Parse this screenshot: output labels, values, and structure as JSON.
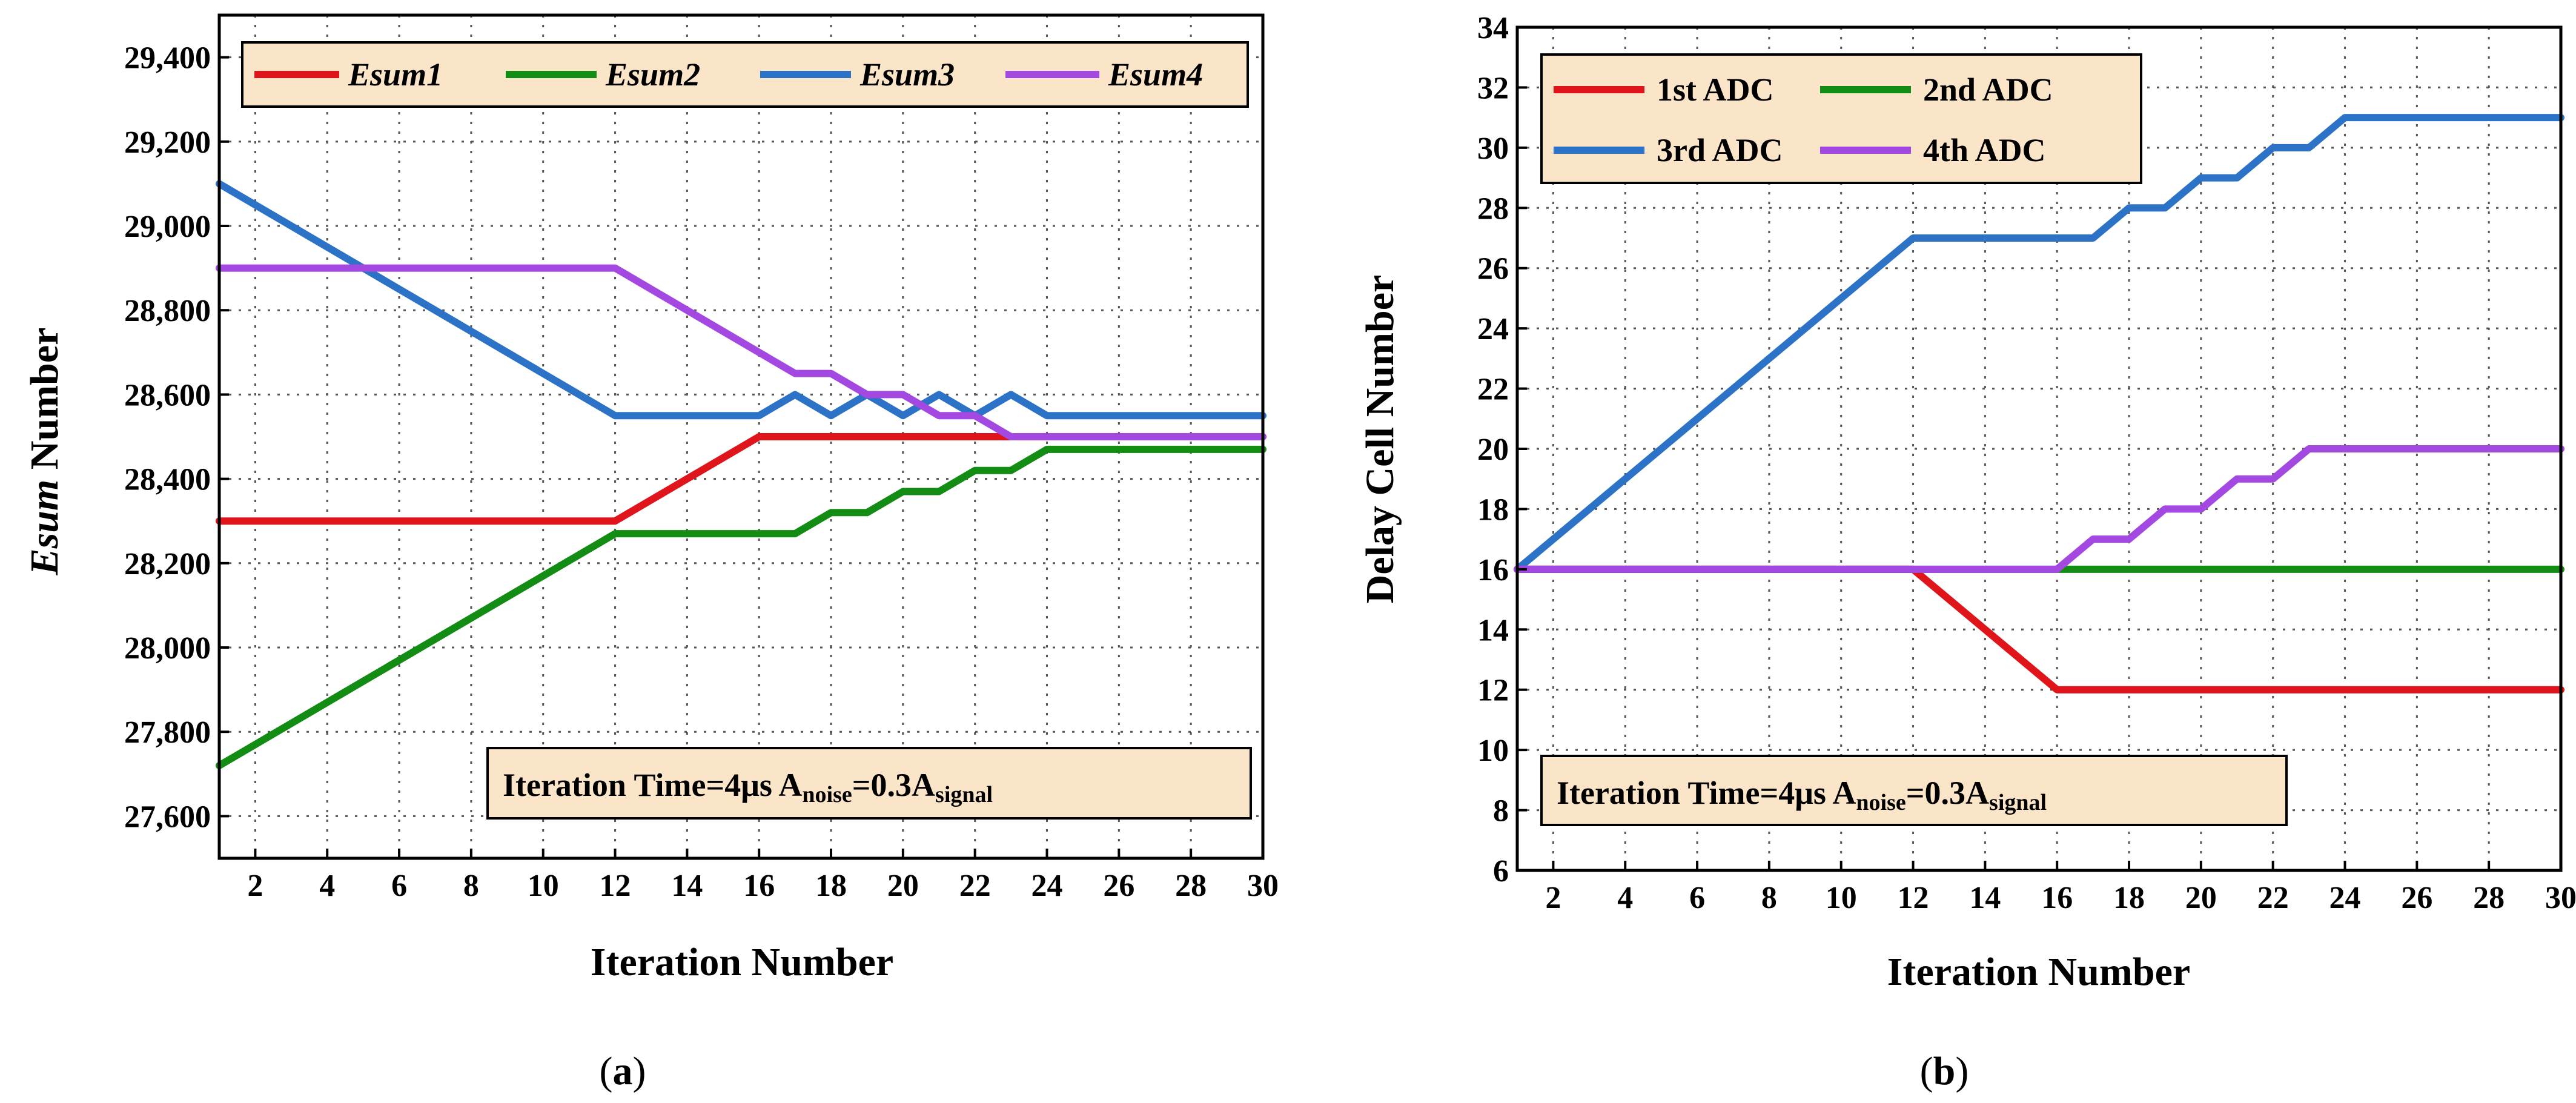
{
  "colors": {
    "red": "#e0151b",
    "green": "#128c13",
    "blue": "#2c73c8",
    "purple": "#a348e0",
    "box_fill": "#fbe5c8"
  },
  "chart_data": [
    {
      "type": "line",
      "ylabel_italic": "Esum",
      "ylabel_rest": " Number",
      "xlabel": "Iteration Number",
      "xlim": [
        1,
        30
      ],
      "ylim": [
        27500,
        29500
      ],
      "xticks": [
        2,
        4,
        6,
        8,
        10,
        12,
        14,
        16,
        18,
        20,
        22,
        24,
        26,
        28,
        30
      ],
      "yticks": [
        27600,
        27800,
        28000,
        28200,
        28400,
        28600,
        28800,
        29000,
        29200,
        29400
      ],
      "ytick_labels": [
        "27,600",
        "27,800",
        "28,000",
        "28,200",
        "28,400",
        "28,600",
        "28,800",
        "29,000",
        "29,200",
        "29,400"
      ],
      "legend_italic": true,
      "series": [
        {
          "name": "Esum1",
          "color": "red",
          "x": [
            1,
            12,
            16,
            30
          ],
          "y": [
            28300,
            28300,
            28500,
            28500
          ]
        },
        {
          "name": "Esum2",
          "color": "green",
          "x": [
            1,
            12,
            17,
            18,
            19,
            20,
            21,
            22,
            23,
            24,
            30
          ],
          "y": [
            27720,
            28270,
            28270,
            28320,
            28320,
            28370,
            28370,
            28420,
            28420,
            28470,
            28470
          ]
        },
        {
          "name": "Esum3",
          "color": "blue",
          "x": [
            1,
            12,
            16,
            17,
            18,
            19,
            20,
            21,
            22,
            23,
            24,
            30
          ],
          "y": [
            29100,
            28550,
            28550,
            28600,
            28550,
            28600,
            28550,
            28600,
            28550,
            28600,
            28550,
            28550
          ]
        },
        {
          "name": "Esum4",
          "color": "purple",
          "x": [
            1,
            12,
            17,
            18,
            19,
            20,
            21,
            22,
            23,
            30
          ],
          "y": [
            28900,
            28900,
            28650,
            28650,
            28600,
            28600,
            28550,
            28550,
            28500,
            28500
          ]
        }
      ],
      "annotation": {
        "main": "Iteration Time=4μs  A",
        "sub1": "noise",
        "mid": "=0.3A",
        "sub2": "signal"
      },
      "caption": {
        "open": "(",
        "letter": "a",
        "close": ")"
      }
    },
    {
      "type": "line",
      "ylabel": "Delay Cell Number",
      "xlabel": "Iteration Number",
      "xlim": [
        1,
        30
      ],
      "ylim": [
        6,
        34
      ],
      "xticks": [
        2,
        4,
        6,
        8,
        10,
        12,
        14,
        16,
        18,
        20,
        22,
        24,
        26,
        28,
        30
      ],
      "yticks": [
        6,
        8,
        10,
        12,
        14,
        16,
        18,
        20,
        22,
        24,
        26,
        28,
        30,
        32,
        34
      ],
      "ytick_labels": [
        "6",
        "8",
        "10",
        "12",
        "14",
        "16",
        "18",
        "20",
        "22",
        "24",
        "26",
        "28",
        "30",
        "32",
        "34"
      ],
      "legend_italic": false,
      "series": [
        {
          "name": "1st ADC",
          "color": "red",
          "x": [
            1,
            12,
            16,
            30
          ],
          "y": [
            16,
            16,
            12,
            12
          ]
        },
        {
          "name": "2nd ADC",
          "color": "green",
          "x": [
            1,
            30
          ],
          "y": [
            16,
            16
          ]
        },
        {
          "name": "3rd ADC",
          "color": "blue",
          "x": [
            1,
            12,
            17,
            18,
            19,
            20,
            21,
            22,
            23,
            24,
            30
          ],
          "y": [
            16,
            27,
            27,
            28,
            28,
            29,
            29,
            30,
            30,
            31,
            31
          ]
        },
        {
          "name": "4th ADC",
          "color": "purple",
          "x": [
            1,
            16,
            17,
            18,
            19,
            20,
            21,
            22,
            23,
            30
          ],
          "y": [
            16,
            16,
            17,
            17,
            18,
            18,
            19,
            19,
            20,
            20
          ]
        }
      ],
      "annotation": {
        "main": "Iteration Time=4μs  A",
        "sub1": "noise",
        "mid": "=0.3A",
        "sub2": "signal"
      },
      "caption": {
        "open": "(",
        "letter": "b",
        "close": ")"
      }
    }
  ]
}
